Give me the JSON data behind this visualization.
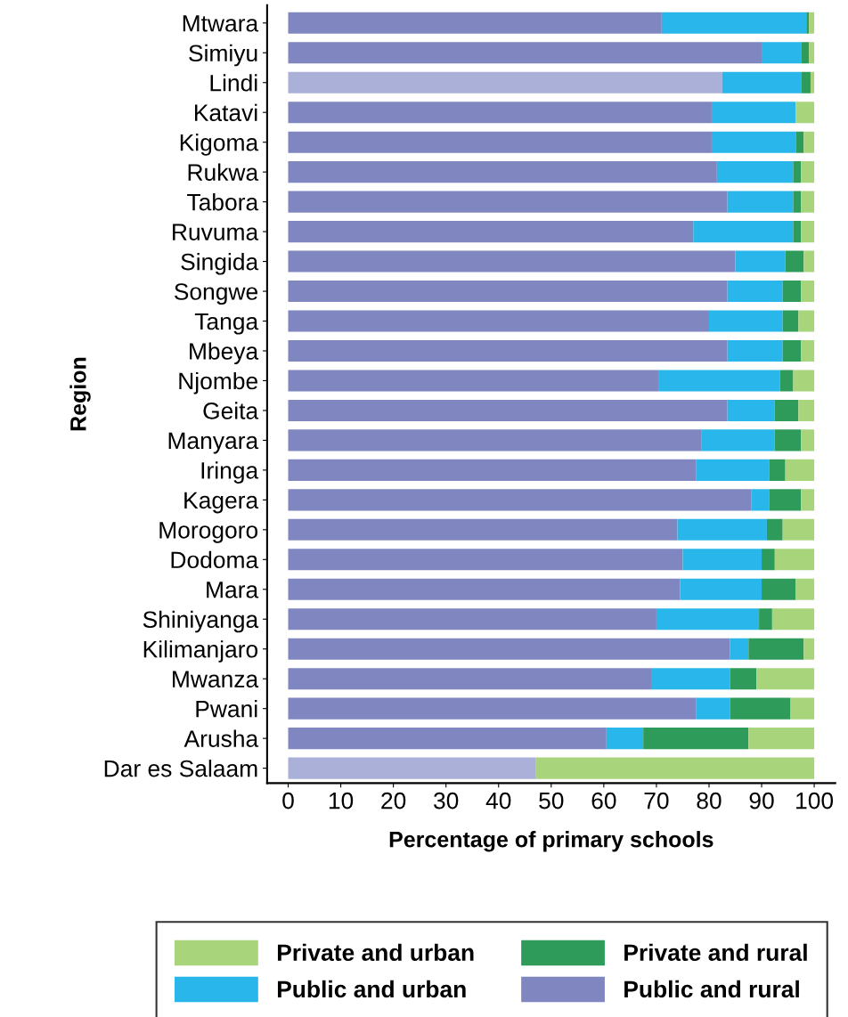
{
  "chart_data": {
    "type": "bar",
    "orientation": "horizontal",
    "stacked": true,
    "xlabel": "Percentage of primary schools",
    "ylabel": "Region",
    "categories": [
      "Mtwara",
      "Simiyu",
      "Lindi",
      "Katavi",
      "Kigoma",
      "Rukwa",
      "Tabora",
      "Ruvuma",
      "Singida",
      "Songwe",
      "Tanga",
      "Mbeya",
      "Njombe",
      "Geita",
      "Manyara",
      "Iringa",
      "Kagera",
      "Morogoro",
      "Dodoma",
      "Mara",
      "Shiniyanga",
      "Kilimanjaro",
      "Mwanza",
      "Pwani",
      "Arusha",
      "Dar es Salaam"
    ],
    "series": [
      {
        "name": "Public and rural",
        "color": "#7f86c0",
        "colors": [
          "#7f86c0",
          "#7f86c0",
          "#aab0d8",
          "#7f86c0",
          "#7f86c0",
          "#7f86c0",
          "#7f86c0",
          "#7f86c0",
          "#7f86c0",
          "#7f86c0",
          "#7f86c0",
          "#7f86c0",
          "#7f86c0",
          "#7f86c0",
          "#7f86c0",
          "#7f86c0",
          "#7f86c0",
          "#7f86c0",
          "#7f86c0",
          "#7f86c0",
          "#7f86c0",
          "#7f86c0",
          "#7f86c0",
          "#7f86c0",
          "#7f86c0",
          "#aab0d8"
        ],
        "values": [
          71,
          90,
          82.5,
          80.5,
          80.5,
          81.5,
          83.5,
          77,
          85,
          83.5,
          80,
          83.5,
          70.5,
          83.5,
          78.5,
          77.5,
          88,
          74,
          75,
          74.5,
          70,
          84,
          69,
          77.5,
          60.5,
          47
        ]
      },
      {
        "name": "Public and urban",
        "color": "#29b6ea",
        "values": [
          27.5,
          7.5,
          15,
          16,
          16,
          14.5,
          12.5,
          19,
          9.5,
          10.5,
          14,
          10.5,
          23,
          9,
          14,
          14,
          3.5,
          17,
          15,
          15.5,
          19.5,
          3.5,
          15,
          6.5,
          7,
          0
        ]
      },
      {
        "name": "Private and rural",
        "color": "#2e9b5a",
        "values": [
          0.5,
          1.5,
          1.8,
          0,
          1.5,
          1.5,
          1.5,
          1.5,
          3.5,
          3.5,
          3,
          3.5,
          2.5,
          4.5,
          5,
          3,
          6,
          3,
          2.5,
          6.5,
          2.5,
          10.5,
          5,
          11.5,
          20,
          0
        ]
      },
      {
        "name": "Private and urban",
        "color": "#a8d47c",
        "values": [
          1,
          1,
          0.7,
          3.5,
          2,
          2.5,
          2.5,
          2.5,
          2,
          2.5,
          3,
          2.5,
          4,
          3,
          2.5,
          5.5,
          2.5,
          6,
          7.5,
          3.5,
          8,
          2,
          11,
          4.5,
          12.5,
          53
        ]
      }
    ],
    "xlim": [
      -4,
      104
    ],
    "xticks": [
      0,
      10,
      20,
      30,
      40,
      50,
      60,
      70,
      80,
      90,
      100
    ],
    "grid": false,
    "legend": "bottom"
  }
}
